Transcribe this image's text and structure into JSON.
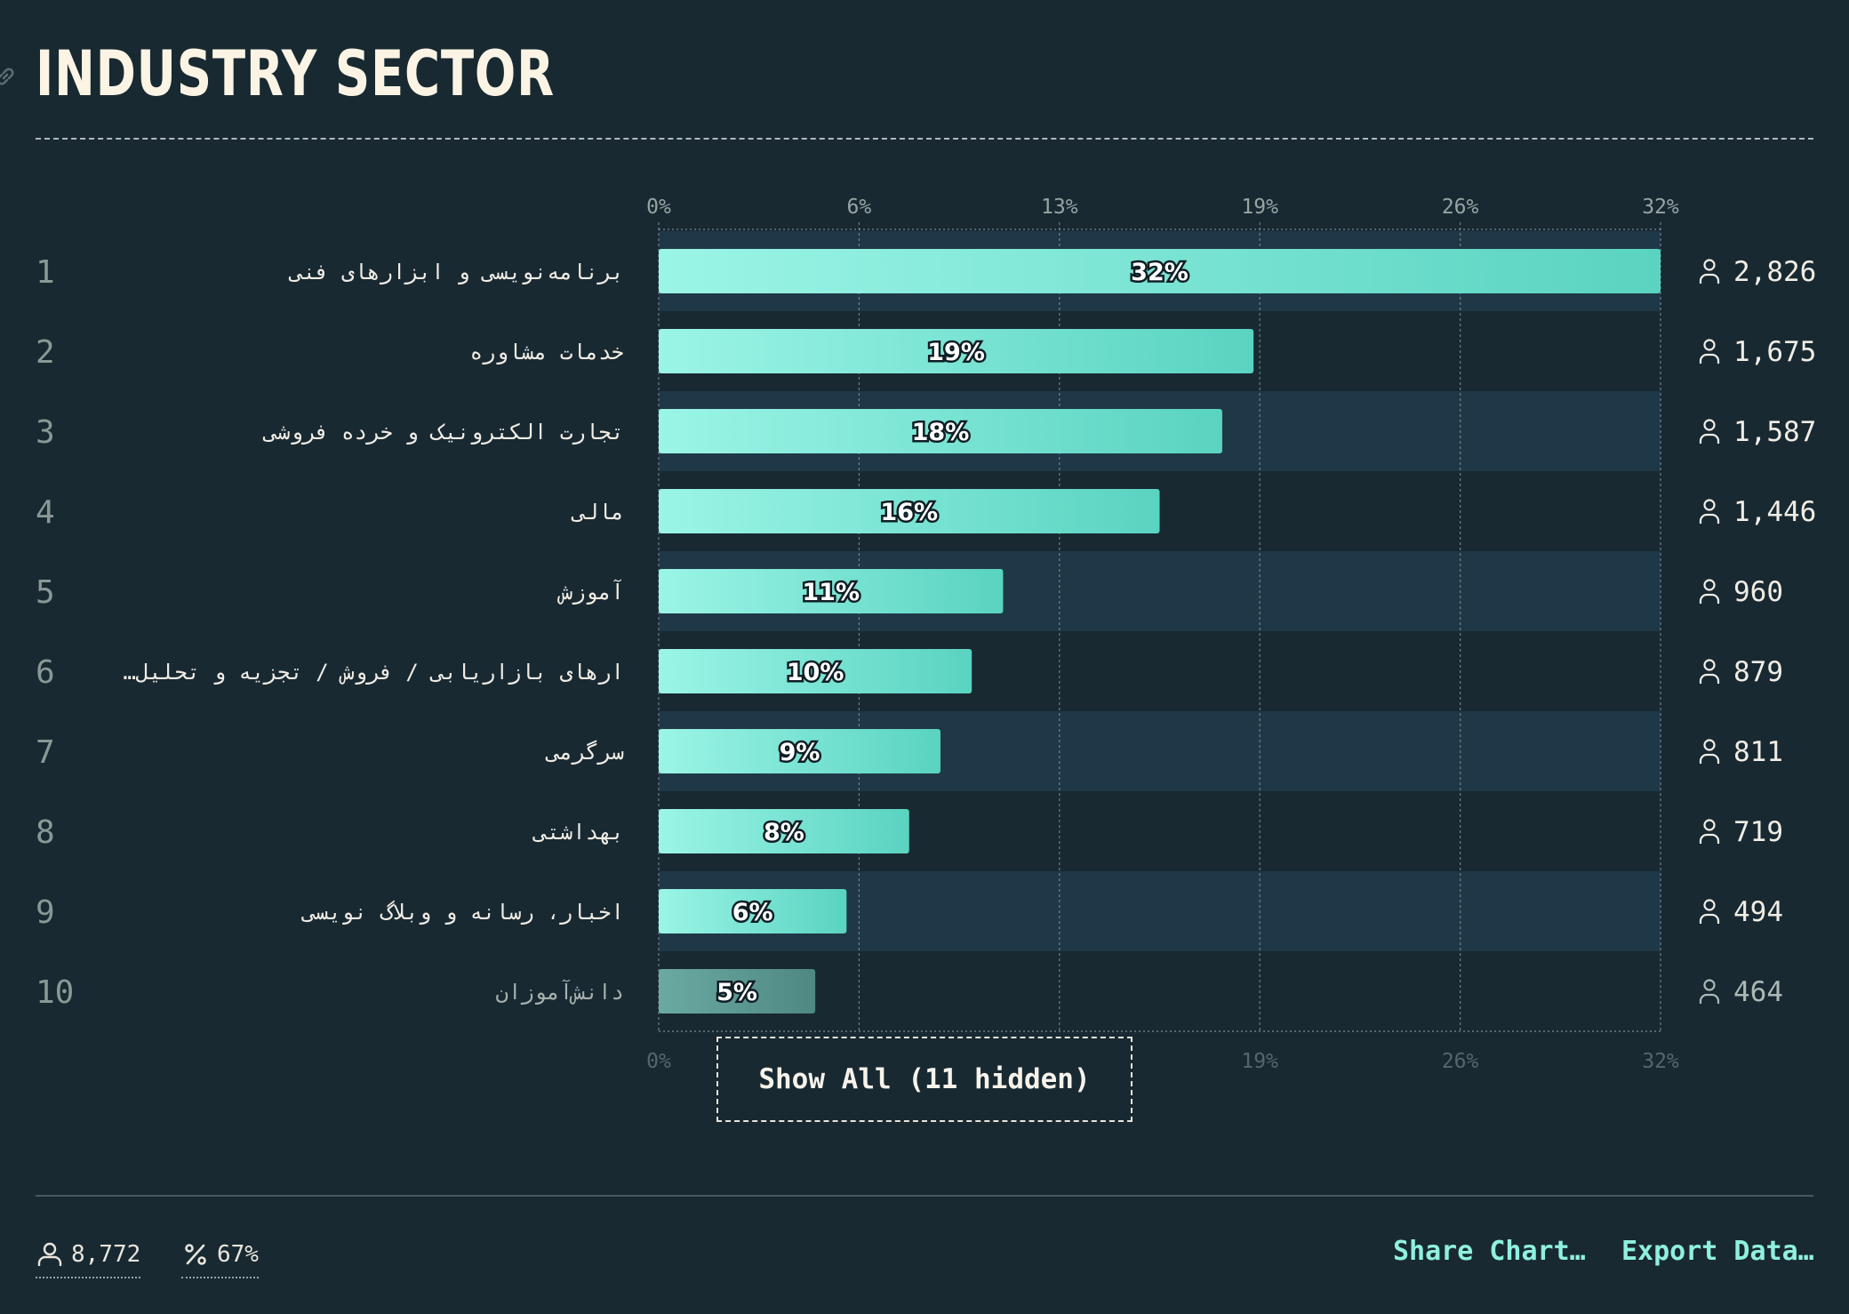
{
  "header": {
    "title": "INDUSTRY SECTOR"
  },
  "show_all_label": "Show All (11 hidden)",
  "footer": {
    "respondents": "8,772",
    "percent": "67%",
    "share_label": "Share Chart…",
    "export_label": "Export Data…"
  },
  "icons": {
    "link": "link-icon",
    "person": "person-icon",
    "percent": "percent-icon"
  },
  "colors": {
    "background": "#182932",
    "bar_start": "#9bf5e6",
    "bar_end": "#5ad3c1",
    "accent": "#8ff0de",
    "faded_bar": "#5a9b95"
  },
  "chart_data": {
    "type": "bar",
    "orientation": "horizontal",
    "xlim": [
      0,
      32
    ],
    "ticks": [
      "0%",
      "6%",
      "13%",
      "19%",
      "26%",
      "32%"
    ],
    "grid": true,
    "categories": [
      "برنامه‌نویسی و ابزارهای فنی",
      "خدمات مشاوره",
      "تجارت الکترونیک و خرده فروشی",
      "مالی",
      "آموزش",
      "…ارهای بازاریابی / فروش / تجزیه و تحلیل",
      "سرگرمی",
      "بهداشتی",
      "اخبار، رسانه و وبلاگ نویسی",
      "دانش‌آموزان"
    ],
    "values": [
      32,
      19,
      18,
      16,
      11,
      10,
      9,
      8,
      6,
      5
    ],
    "value_labels": [
      "32%",
      "19%",
      "18%",
      "16%",
      "11%",
      "10%",
      "9%",
      "8%",
      "6%",
      "5%"
    ],
    "ranks": [
      "1",
      "2",
      "3",
      "4",
      "5",
      "6",
      "7",
      "8",
      "9",
      "10"
    ],
    "counts": [
      "2,826",
      "1,675",
      "1,587",
      "1,446",
      "960",
      "879",
      "811",
      "719",
      "494",
      "464"
    ]
  }
}
